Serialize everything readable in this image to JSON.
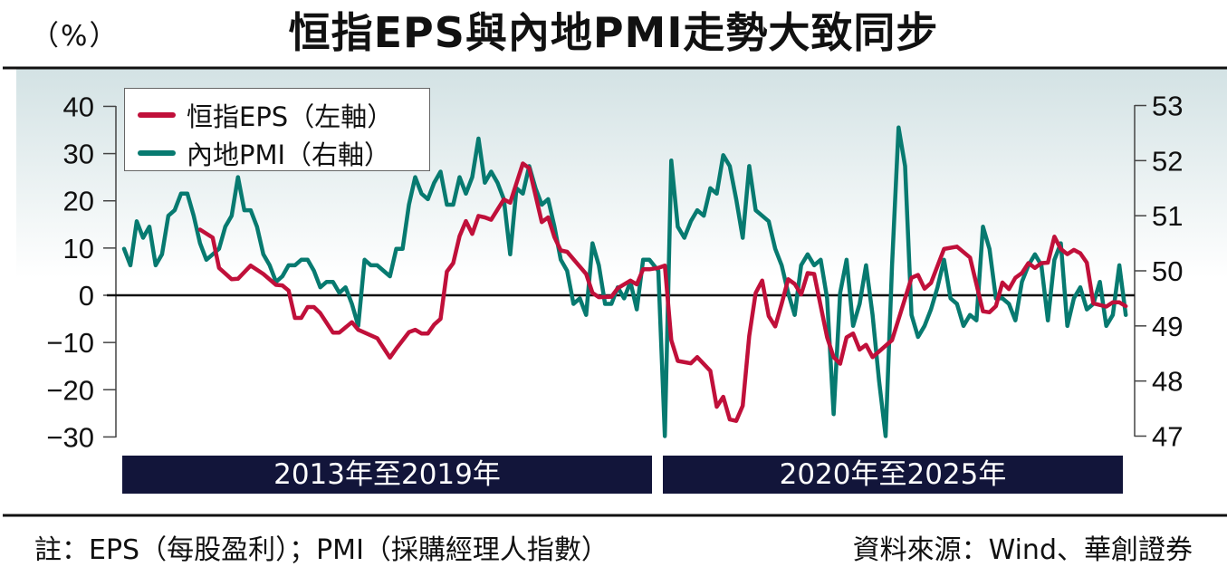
{
  "header": {
    "unit_label": "（%）",
    "title": "恒指EPS與內地PMI走勢大致同步"
  },
  "legend": {
    "eps_label": "恒指EPS（左軸）",
    "pmi_label": "內地PMI（右軸）"
  },
  "periods": [
    "2013年至2019年",
    "2020年至2025年"
  ],
  "footer": {
    "note": "註：EPS（每股盈利）；PMI（採購經理人指數）",
    "source": "資料來源：Wind、華創證券"
  },
  "colors": {
    "eps": "#c0103a",
    "pmi": "#077a70",
    "period_bar": "#12153a",
    "background_top": "#d3e2e4"
  },
  "chart_data": {
    "type": "line",
    "title": "恒指EPS與內地PMI走勢大致同步",
    "left_axis": {
      "label": "（%）",
      "range": [
        -30,
        40
      ],
      "ticks": [
        40,
        30,
        20,
        10,
        0,
        -10,
        -20,
        -30
      ]
    },
    "right_axis": {
      "range": [
        47,
        53
      ],
      "ticks": [
        53,
        52,
        51,
        50,
        49,
        48,
        47
      ]
    },
    "grid": false,
    "reference_line": 0,
    "legend_position": "top-left",
    "x_periods": [
      "2013年至2019年",
      "2020年至2025年"
    ],
    "series": [
      {
        "name": "恒指EPS（左軸）",
        "axis": "left",
        "points": [
          [
            "2014-01",
            13.9
          ],
          [
            "2014-03",
            12.2
          ],
          [
            "2014-04",
            5.8
          ],
          [
            "2014-06",
            3.4
          ],
          [
            "2014-07",
            3.5
          ],
          [
            "2014-09",
            6.3
          ],
          [
            "2014-11",
            4.5
          ],
          [
            "2015-01",
            2.2
          ],
          [
            "2015-02",
            2.1
          ],
          [
            "2015-03",
            1.0
          ],
          [
            "2015-04",
            -4.8
          ],
          [
            "2015-05",
            -4.8
          ],
          [
            "2015-06",
            -2.5
          ],
          [
            "2015-07",
            -2.5
          ],
          [
            "2015-08",
            -3.8
          ],
          [
            "2015-10",
            -7.9
          ],
          [
            "2015-11",
            -7.9
          ],
          [
            "2016-01",
            -5.7
          ],
          [
            "2016-02",
            -7.3
          ],
          [
            "2016-05",
            -9.1
          ],
          [
            "2016-07",
            -13.2
          ],
          [
            "2016-08",
            -11.3
          ],
          [
            "2016-10",
            -7.8
          ],
          [
            "2016-11",
            -7.3
          ],
          [
            "2016-12",
            -8.1
          ],
          [
            "2017-01",
            -8.1
          ],
          [
            "2017-02",
            -6.2
          ],
          [
            "2017-03",
            -5.0
          ],
          [
            "2017-04",
            5.0
          ],
          [
            "2017-05",
            6.8
          ],
          [
            "2017-06",
            12.5
          ],
          [
            "2017-07",
            15.7
          ],
          [
            "2017-08",
            13.0
          ],
          [
            "2017-09",
            16.8
          ],
          [
            "2017-10",
            16.5
          ],
          [
            "2017-11",
            16.0
          ],
          [
            "2018-01",
            20.3
          ],
          [
            "2018-02",
            19.6
          ],
          [
            "2018-04",
            27.9
          ],
          [
            "2018-05",
            26.9
          ],
          [
            "2018-07",
            15.5
          ],
          [
            "2018-08",
            16.5
          ],
          [
            "2018-09",
            12.3
          ],
          [
            "2018-10",
            9.5
          ],
          [
            "2018-11",
            9.2
          ],
          [
            "2019-02",
            4.5
          ],
          [
            "2019-03",
            0.5
          ],
          [
            "2019-04",
            -0.4
          ],
          [
            "2019-06",
            -0.3
          ],
          [
            "2019-07",
            1.5
          ],
          [
            "2019-09",
            3.1
          ],
          [
            "2019-10",
            2.3
          ],
          [
            "2019-11",
            5.5
          ],
          [
            "2019-12",
            5.5
          ],
          [
            "2020-01",
            5.8
          ],
          [
            "2020-02",
            6.3
          ],
          [
            "2020-03",
            -9.5
          ],
          [
            "2020-04",
            -13.9
          ],
          [
            "2020-06",
            -14.4
          ],
          [
            "2020-07",
            -13.1
          ],
          [
            "2020-09",
            -16.0
          ],
          [
            "2020-10",
            -23.6
          ],
          [
            "2020-11",
            -21.5
          ],
          [
            "2020-12",
            -26.3
          ],
          [
            "2021-01",
            -26.6
          ],
          [
            "2021-02",
            -23.4
          ],
          [
            "2021-03",
            -8.6
          ],
          [
            "2021-04",
            0.5
          ],
          [
            "2021-05",
            3.1
          ],
          [
            "2021-06",
            -4.4
          ],
          [
            "2021-07",
            -6.6
          ],
          [
            "2021-08",
            -1.8
          ],
          [
            "2021-09",
            3.4
          ],
          [
            "2021-10",
            2.4
          ],
          [
            "2021-11",
            0.2
          ],
          [
            "2021-12",
            4.7
          ],
          [
            "2022-01",
            4.5
          ],
          [
            "2022-03",
            -8.9
          ],
          [
            "2022-04",
            -13.1
          ],
          [
            "2022-05",
            -14.5
          ],
          [
            "2022-06",
            -8.9
          ],
          [
            "2022-07",
            -8.1
          ],
          [
            "2022-08",
            -11.5
          ],
          [
            "2022-09",
            -10.5
          ],
          [
            "2022-10",
            -13.1
          ],
          [
            "2023-01",
            -9.5
          ],
          [
            "2023-04",
            3.7
          ],
          [
            "2023-05",
            4.3
          ],
          [
            "2023-06",
            1.4
          ],
          [
            "2023-07",
            2.6
          ],
          [
            "2023-09",
            9.8
          ],
          [
            "2023-11",
            10.3
          ],
          [
            "2024-01",
            8.0
          ],
          [
            "2024-03",
            -3.4
          ],
          [
            "2024-04",
            -3.6
          ],
          [
            "2024-05",
            -2.3
          ],
          [
            "2024-06",
            2.7
          ],
          [
            "2024-07",
            1.3
          ],
          [
            "2024-08",
            3.7
          ],
          [
            "2024-09",
            4.7
          ],
          [
            "2024-10",
            6.8
          ],
          [
            "2024-11",
            5.8
          ],
          [
            "2024-12",
            6.8
          ],
          [
            "2025-01",
            6.9
          ],
          [
            "2025-02",
            12.4
          ],
          [
            "2025-03",
            9.8
          ],
          [
            "2025-04",
            8.7
          ],
          [
            "2025-05",
            9.6
          ],
          [
            "2025-06",
            8.9
          ],
          [
            "2025-07",
            6.9
          ],
          [
            "2025-08",
            -1.7
          ],
          [
            "2025-10",
            -2.4
          ],
          [
            "2025-11",
            -1.5
          ],
          [
            "2025-12",
            -1.5
          ],
          [
            "2026-01",
            -2.3
          ]
        ]
      },
      {
        "name": "內地PMI（右軸）",
        "axis": "right",
        "monthly_by_year": {
          "2013": [
            50.4,
            50.1,
            50.9,
            50.6,
            50.8,
            50.1,
            50.3,
            51.0,
            51.1,
            51.4,
            51.4,
            51.0
          ],
          "2014": [
            50.5,
            50.2,
            50.3,
            50.4,
            50.8,
            51.0,
            51.7,
            51.1,
            51.1,
            50.8,
            50.3,
            50.1
          ],
          "2015": [
            49.8,
            49.9,
            50.1,
            50.1,
            50.2,
            50.2,
            50.0,
            49.7,
            49.8,
            49.8,
            49.6,
            49.7
          ],
          "2016": [
            49.4,
            49.0,
            50.2,
            50.1,
            50.1,
            50.0,
            49.9,
            50.4,
            50.4,
            51.2,
            51.7,
            51.4
          ],
          "2017": [
            51.3,
            51.6,
            51.8,
            51.2,
            51.2,
            51.7,
            51.4,
            51.7,
            52.4,
            51.6,
            51.8,
            51.6
          ],
          "2018": [
            51.3,
            50.3,
            51.5,
            51.4,
            51.9,
            51.5,
            51.2,
            51.3,
            50.8,
            50.2,
            50.0,
            49.4
          ],
          "2019": [
            49.5,
            49.2,
            50.5,
            50.1,
            49.4,
            49.4,
            49.7,
            49.5,
            49.8,
            49.3,
            50.2,
            50.2
          ],
          "2020": [
            50.0,
            47.0,
            52.0,
            50.8,
            50.6,
            50.9,
            51.1,
            51.0,
            51.5,
            51.4,
            52.1,
            51.9
          ],
          "2021": [
            51.3,
            50.6,
            51.9,
            51.1,
            51.0,
            50.9,
            50.4,
            50.1,
            49.6,
            49.2,
            50.1,
            50.3
          ],
          "2022": [
            50.1,
            50.2,
            49.5,
            47.4,
            49.6,
            50.2,
            49.0,
            49.4,
            50.1,
            49.2,
            48.0,
            47.0
          ],
          "2023": [
            50.1,
            52.6,
            51.9,
            49.2,
            48.8,
            49.0,
            49.3,
            49.7,
            50.2,
            49.5,
            49.4,
            49.0
          ],
          "2024": [
            49.2,
            49.1,
            50.8,
            50.4,
            49.5,
            49.5,
            49.4,
            49.1,
            49.8,
            50.1,
            50.3,
            50.1
          ],
          "2025": [
            49.1,
            50.2,
            50.5,
            49.0,
            49.5,
            49.7,
            49.3,
            49.4,
            49.8,
            49.0,
            49.2,
            50.1
          ],
          "2026": [
            49.2
          ]
        }
      }
    ]
  }
}
